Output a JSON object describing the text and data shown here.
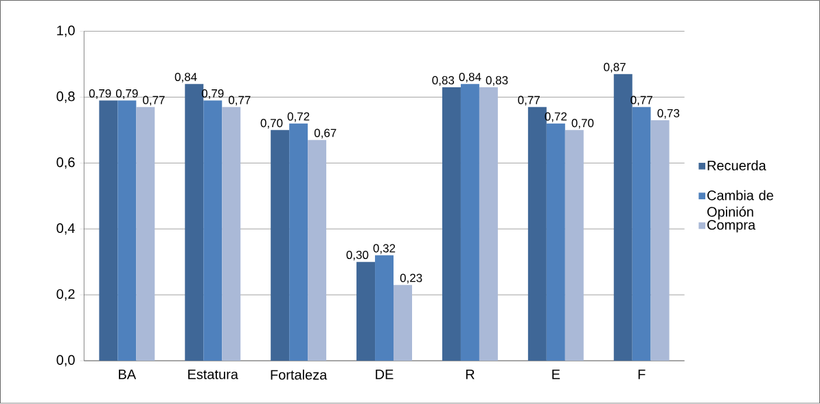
{
  "chart_data": {
    "type": "bar",
    "categories": [
      "BA",
      "Estatura",
      "Fortaleza",
      "DE",
      "R",
      "E",
      "F"
    ],
    "series": [
      {
        "name": "Recuerda",
        "color": "#3f6797",
        "values": [
          0.79,
          0.84,
          0.7,
          0.3,
          0.83,
          0.77,
          0.87
        ],
        "value_labels": [
          "0,79",
          "0,84",
          "0,70",
          "0,30",
          "0,83",
          "0,77",
          "0,87"
        ]
      },
      {
        "name": "Cambia de Opinión",
        "color": "#4f81bd",
        "values": [
          0.79,
          0.79,
          0.72,
          0.32,
          0.84,
          0.72,
          0.77
        ],
        "value_labels": [
          "0,79",
          "0,79",
          "0,72",
          "0,32",
          "0,84",
          "0,72",
          "0,77"
        ]
      },
      {
        "name": "Compra",
        "color": "#aab9d7",
        "values": [
          0.77,
          0.77,
          0.67,
          0.23,
          0.83,
          0.7,
          0.73
        ],
        "value_labels": [
          "0,77",
          "0,77",
          "0,67",
          "0,23",
          "0,83",
          "0,70",
          "0,73"
        ]
      }
    ],
    "ylim": [
      0,
      1
    ],
    "yticks": [
      {
        "value": 0,
        "label": "0,0"
      },
      {
        "value": 0.2,
        "label": "0,2"
      },
      {
        "value": 0.4,
        "label": "0,4"
      },
      {
        "value": 0.6,
        "label": "0,6"
      },
      {
        "value": 0.8,
        "label": "0,8"
      },
      {
        "value": 1,
        "label": "1,0"
      }
    ],
    "grid": "y",
    "legend": "right"
  }
}
